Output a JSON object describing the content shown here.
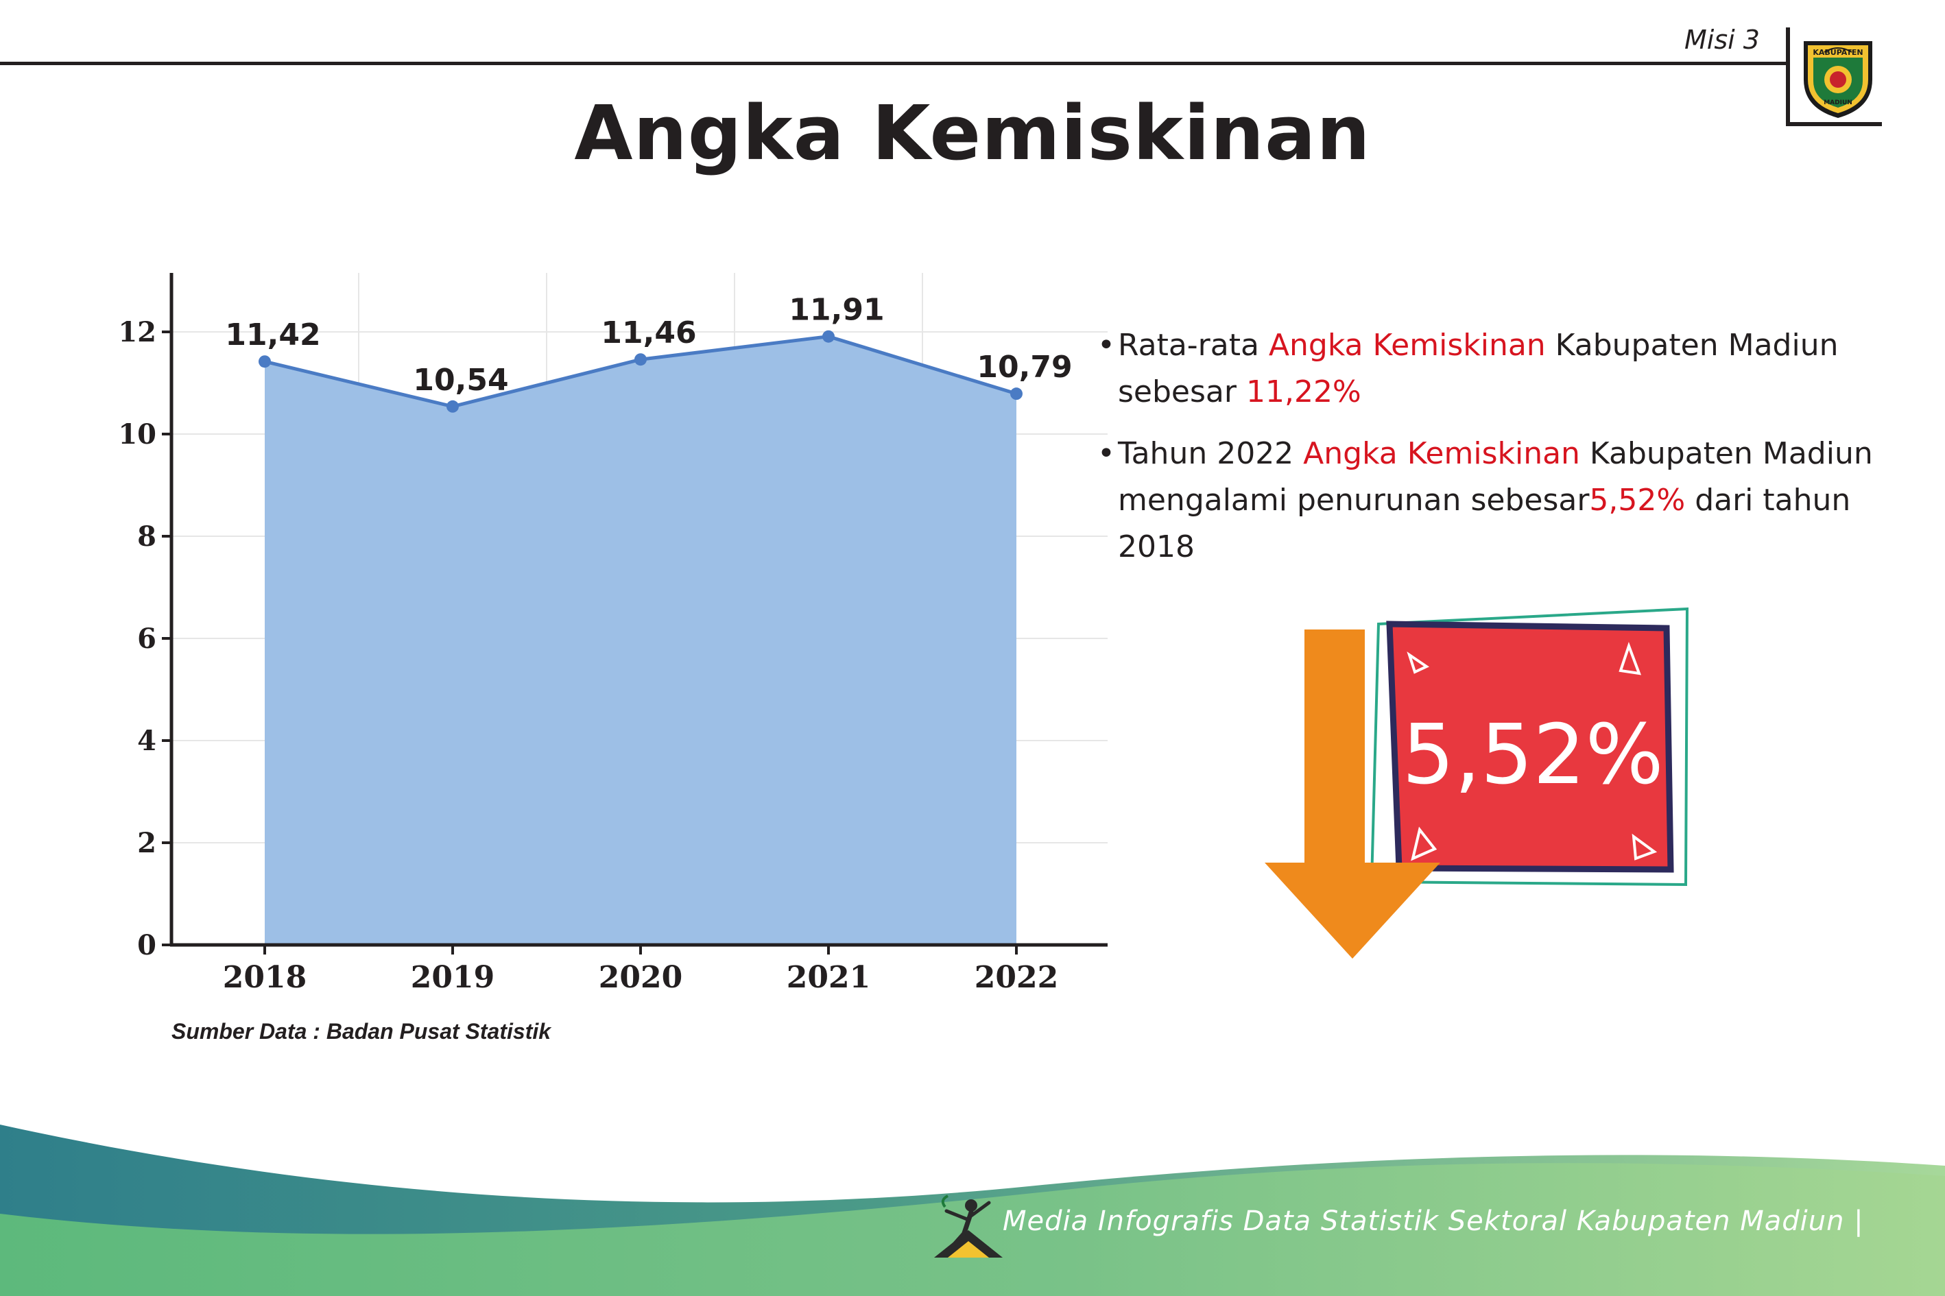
{
  "header": {
    "misi_label": "Misi 3",
    "title": "Angka Kemiskinan",
    "logo_top_text": "KABUPATEN",
    "logo_bottom_text": "MADIUN"
  },
  "chart_data": {
    "type": "area",
    "categories": [
      "2018",
      "2019",
      "2020",
      "2021",
      "2022"
    ],
    "values": [
      11.42,
      10.54,
      11.46,
      11.91,
      10.79
    ],
    "data_labels": [
      "11,42",
      "10,54",
      "11,46",
      "11,91",
      "10,79"
    ],
    "yticks": [
      "0",
      "2",
      "4",
      "6",
      "8",
      "10",
      "12"
    ],
    "ylim": [
      0,
      13
    ],
    "title": "",
    "xlabel": "",
    "ylabel": "",
    "grid": true,
    "fill_color": "#9dbfe6",
    "line_color": "#4a7bc4"
  },
  "source_note": "Sumber Data : Badan Pusat Statistik",
  "notes": {
    "n1_a": "Rata-rata ",
    "n1_hl": "Angka Kemiskinan",
    "n1_b": " Kabupaten Madiun sebesar ",
    "n1_val": "11,22%",
    "n2_a": "Tahun 2022 ",
    "n2_hl": "Angka Kemiskinan",
    "n2_b": " Kabupaten Madiun mengalami penurunan sebesar",
    "n2_val": "5,52%",
    "n2_c": " dari tahun 2018"
  },
  "badge": {
    "value": "5,52%",
    "box_color": "#e8383f",
    "arrow_color": "#ef8a1c"
  },
  "footer": {
    "text": "Media Infografis Data Statistik Sektoral Kabupaten Madiun |"
  }
}
